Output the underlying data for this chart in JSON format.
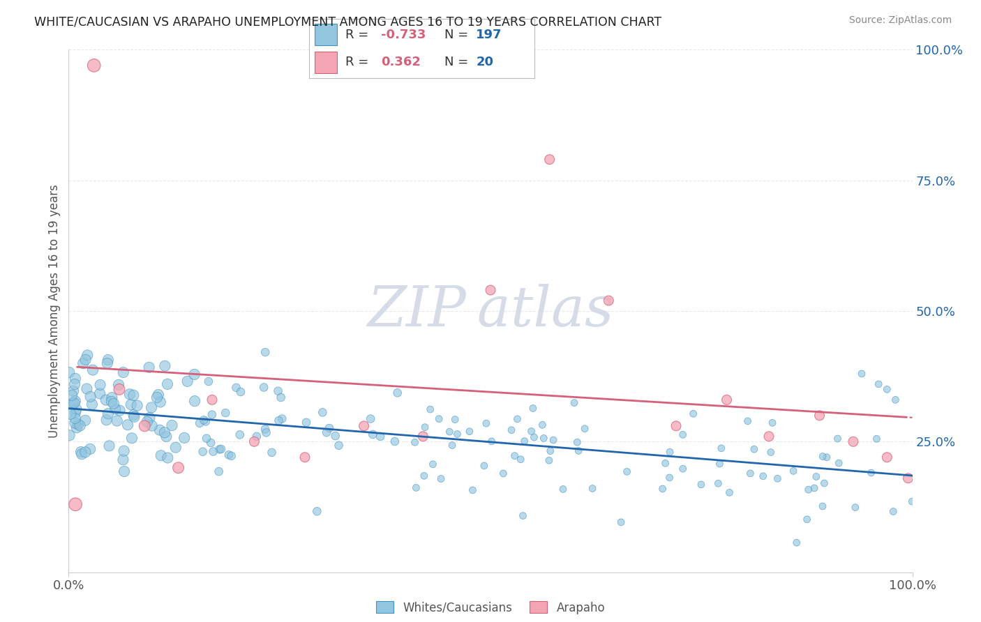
{
  "title": "WHITE/CAUCASIAN VS ARAPAHO UNEMPLOYMENT AMONG AGES 16 TO 19 YEARS CORRELATION CHART",
  "source": "Source: ZipAtlas.com",
  "ylabel": "Unemployment Among Ages 16 to 19 years",
  "legend_blue_label": "Whites/Caucasians",
  "legend_pink_label": "Arapaho",
  "R_blue": -0.733,
  "N_blue": 197,
  "R_pink": 0.362,
  "N_pink": 20,
  "blue_color": "#92c5de",
  "pink_color": "#f4a5b3",
  "blue_edge_color": "#4393c3",
  "pink_edge_color": "#d6607a",
  "blue_line_color": "#2166ac",
  "pink_line_color": "#d6607a",
  "background_color": "#ffffff",
  "grid_color": "#e8e8e8",
  "watermark_color": "#d5dce8",
  "title_color": "#222222",
  "source_color": "#888888",
  "axis_label_color": "#555555",
  "legend_R_color": "#d6607a",
  "legend_N_color": "#2166ac",
  "xlim": [
    0,
    100
  ],
  "ylim": [
    0,
    100
  ],
  "pink_scatter_x": [
    0.8,
    3.0,
    6.0,
    9.0,
    13.0,
    17.0,
    22.0,
    28.0,
    35.0,
    42.0,
    50.0,
    57.0,
    64.0,
    72.0,
    78.0,
    83.0,
    89.0,
    93.0,
    97.0,
    99.5
  ],
  "pink_scatter_y": [
    13.0,
    97.0,
    35.0,
    28.0,
    20.0,
    33.0,
    25.0,
    22.0,
    28.0,
    26.0,
    54.0,
    79.0,
    52.0,
    28.0,
    33.0,
    26.0,
    30.0,
    25.0,
    22.0,
    18.0
  ]
}
